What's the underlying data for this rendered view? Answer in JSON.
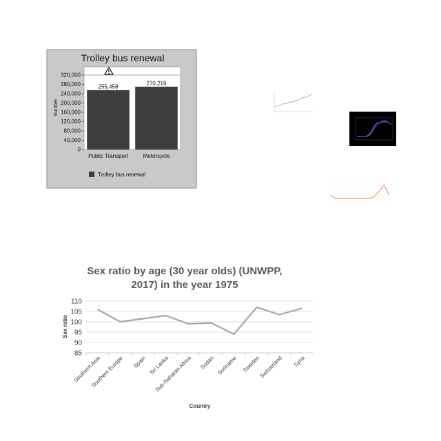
{
  "chart_data": [
    {
      "type": "bar",
      "title": "Trolley bus renewal",
      "ylabel": "Number",
      "categories": [
        "Public Transport",
        "Motorcycle"
      ],
      "values": [
        255458,
        270216
      ],
      "value_labels": [
        "255,458",
        "270,216"
      ],
      "yticks": [
        0,
        40000,
        80000,
        120000,
        160000,
        200000,
        240000,
        280000,
        320000
      ],
      "ytick_labels": [
        "0",
        "40,000",
        "80,000",
        "120,000",
        "160,000",
        "200,000",
        "240,000",
        "280,000",
        "320,000"
      ],
      "ylim": [
        0,
        320000
      ],
      "legend": [
        "Trolley bus renewal"
      ],
      "grid": false,
      "colors": {
        "bar": "#3d3d3d",
        "panel": "#c9c9c9",
        "plot_bg": "#ffffff"
      }
    },
    {
      "type": "line",
      "title": "",
      "series": [
        {
          "values": [
            2,
            3,
            3,
            4,
            4,
            5,
            5,
            6,
            6,
            7,
            8,
            8,
            9,
            10
          ]
        }
      ],
      "colors": {
        "line": "#9e9e9e"
      }
    },
    {
      "type": "line",
      "title": "",
      "series": [
        {
          "values": [
            1,
            1,
            1,
            1,
            2,
            4,
            7,
            9,
            9,
            10,
            10,
            9,
            8
          ]
        },
        {
          "values": [
            1,
            1,
            1,
            1,
            1.5,
            3,
            6,
            8,
            9,
            9.5,
            9.5,
            9,
            8
          ]
        }
      ],
      "colors": {
        "background": "#000000",
        "line1": "#3f6bff",
        "line2": "#b340c8"
      }
    },
    {
      "type": "line",
      "title": "",
      "series": [
        {
          "values": [
            3,
            1,
            1,
            1,
            1,
            1,
            1,
            1,
            2,
            5,
            9,
            3
          ]
        }
      ],
      "colors": {
        "line": "#f08a4b"
      }
    },
    {
      "type": "line",
      "title": "Sex ratio by age (30 year olds) (UNWPP, 2017) in the year 1975",
      "xlabel": "Country",
      "ylabel": "Sex ratio",
      "categories": [
        "Southern Asia",
        "Southern Europe",
        "Spain",
        "Sri Lanka",
        "Sub-Saharan Africa",
        "Sudan",
        "Suriname",
        "Sweden",
        "Switzerland",
        "Syria"
      ],
      "series": [
        {
          "values": [
            106,
            100,
            101.5,
            103,
            99,
            99.5,
            94,
            107,
            103.5,
            106.5
          ]
        }
      ],
      "ylim": [
        85,
        110
      ],
      "yticks": [
        85,
        90,
        95,
        100,
        105,
        110
      ],
      "grid": true,
      "colors": {
        "line": "#a6a6a6",
        "grid": "#d9d9d9",
        "text": "#404040",
        "title": "#595959"
      }
    }
  ]
}
